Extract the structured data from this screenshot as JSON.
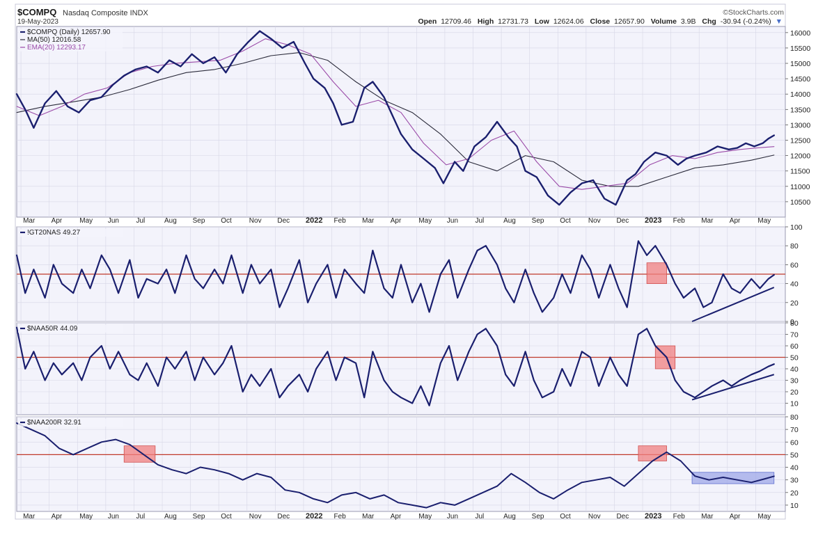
{
  "header": {
    "symbol": "$COMPQ",
    "name": "Nasdaq Composite INDX",
    "date": "19-May-2023",
    "credit": "©StockCharts.com",
    "quote": {
      "open_label": "Open",
      "open": "12709.46",
      "high_label": "High",
      "high": "12731.73",
      "low_label": "Low",
      "low": "12624.06",
      "close_label": "Close",
      "close": "12657.90",
      "volume_label": "Volume",
      "volume": "3.9B",
      "chg_label": "Chg",
      "chg": "-30.94 (-0.24%)"
    }
  },
  "colors": {
    "price": "#1a1f6e",
    "ma50": "#2a2a3a",
    "ema20": "#9a4aa8",
    "reference_line": "#c0392b",
    "highlight_red": "#f08080",
    "highlight_blue": "#9fa8e8",
    "panel_bg": "#f3f3fb",
    "grid": "#d6d6e6"
  },
  "x_axis": {
    "labels": [
      "Mar",
      "Apr",
      "May",
      "Jun",
      "Jul",
      "Aug",
      "Sep",
      "Oct",
      "Nov",
      "Dec",
      "2022",
      "Feb",
      "Mar",
      "Apr",
      "May",
      "Jun",
      "Jul",
      "Aug",
      "Sep",
      "Oct",
      "Nov",
      "Dec",
      "2023",
      "Feb",
      "Mar",
      "Apr",
      "May"
    ],
    "bold_labels": [
      "2022",
      "2023"
    ]
  },
  "chart_data": [
    {
      "type": "line",
      "panel": "price",
      "ylim": [
        10000,
        16200
      ],
      "yticks": [
        10500,
        11000,
        11500,
        12000,
        12500,
        13000,
        13500,
        14000,
        14500,
        15000,
        15500,
        16000
      ],
      "legend": [
        {
          "key": "price",
          "label": "$COMPQ (Daily) 12657.90"
        },
        {
          "key": "ma50",
          "label": "MA(50) 12016.58"
        },
        {
          "key": "ema20",
          "label": "EMA(20) 12293.17"
        }
      ],
      "legend_placement": "top-left",
      "series": [
        {
          "name": "$COMPQ (Daily)",
          "key": "price",
          "x": [
            0,
            0.3,
            0.6,
            1.0,
            1.4,
            1.8,
            2.2,
            2.6,
            3.0,
            3.4,
            3.8,
            4.2,
            4.6,
            5.0,
            5.4,
            5.8,
            6.2,
            6.6,
            7.0,
            7.4,
            7.8,
            8.2,
            8.6,
            9.0,
            9.4,
            9.8,
            10.2,
            10.5,
            10.9,
            11.2,
            11.5,
            11.9,
            12.3,
            12.6,
            13.0,
            13.3,
            13.6,
            14.0,
            14.4,
            14.8,
            15.1,
            15.5,
            15.8,
            16.2,
            16.6,
            17.0,
            17.4,
            17.7,
            18.0,
            18.4,
            18.8,
            19.2,
            19.6,
            20.0,
            20.4,
            20.8,
            21.2,
            21.6,
            21.9,
            22.2,
            22.6,
            23.0,
            23.4,
            23.7,
            24.0,
            24.4,
            24.8,
            25.2,
            25.5,
            25.8,
            26.1,
            26.4,
            26.6,
            26.8
          ],
          "y": [
            14000,
            13500,
            12900,
            13700,
            14100,
            13600,
            13400,
            13800,
            13900,
            14300,
            14600,
            14800,
            14900,
            14700,
            15100,
            14900,
            15300,
            15000,
            15200,
            14700,
            15300,
            15700,
            16050,
            15800,
            15500,
            15700,
            15000,
            14500,
            14200,
            13700,
            13000,
            13100,
            14200,
            14400,
            13900,
            13300,
            12700,
            12200,
            11900,
            11600,
            11100,
            11800,
            11500,
            12300,
            12600,
            13100,
            12600,
            12300,
            11500,
            11300,
            10700,
            10400,
            10800,
            11100,
            11200,
            10600,
            10400,
            11200,
            11400,
            11800,
            12100,
            12000,
            11700,
            11900,
            12000,
            12100,
            12300,
            12200,
            12250,
            12400,
            12300,
            12400,
            12550,
            12657.9
          ]
        },
        {
          "name": "MA(50)",
          "key": "ma50",
          "x": [
            0,
            1,
            2,
            3,
            4,
            5,
            6,
            7,
            8,
            9,
            10,
            11,
            12,
            13,
            14,
            15,
            16,
            17,
            18,
            19,
            20,
            21,
            22,
            23,
            24,
            25,
            26,
            26.8
          ],
          "y": [
            13400,
            13600,
            13750,
            13900,
            14150,
            14450,
            14700,
            14800,
            15000,
            15250,
            15350,
            15100,
            14400,
            13800,
            13400,
            12700,
            11800,
            11500,
            12000,
            11800,
            11200,
            11000,
            11000,
            11300,
            11600,
            11700,
            11850,
            12016.58
          ]
        },
        {
          "name": "EMA(20)",
          "key": "ema20",
          "x": [
            0,
            0.8,
            1.6,
            2.4,
            3.2,
            4.0,
            4.8,
            5.6,
            6.4,
            7.2,
            8.0,
            8.8,
            9.6,
            10.4,
            11.2,
            12.0,
            12.8,
            13.6,
            14.4,
            15.2,
            16.0,
            16.8,
            17.6,
            18.4,
            19.2,
            20.0,
            20.8,
            21.6,
            22.4,
            23.2,
            24.0,
            24.8,
            25.6,
            26.2,
            26.8
          ],
          "y": [
            13600,
            13300,
            13600,
            14000,
            14200,
            14700,
            14900,
            15000,
            15050,
            15100,
            15400,
            15800,
            15600,
            15300,
            14400,
            13600,
            13800,
            13400,
            12400,
            11700,
            11900,
            12500,
            12800,
            11800,
            11000,
            10900,
            11000,
            11100,
            11700,
            12000,
            11900,
            12100,
            12200,
            12250,
            12293.17
          ]
        }
      ]
    },
    {
      "type": "line",
      "panel": "gt20",
      "ylim": [
        0,
        100
      ],
      "yticks": [
        0,
        20,
        40,
        60,
        80,
        100
      ],
      "reference_value": 50,
      "legend": [
        {
          "key": "price",
          "label": "!GT20NAS 49.27"
        }
      ],
      "highlights": [
        {
          "type": "box",
          "x0": 22.3,
          "x1": 23.0,
          "y0": 40,
          "y1": 62,
          "color_key": "highlight_red"
        }
      ],
      "trendlines": [
        {
          "x": [
            23.9,
            26.8
          ],
          "y": [
            0,
            36
          ]
        }
      ],
      "series": [
        {
          "name": "!GT20NAS",
          "key": "price",
          "x": [
            0,
            0.3,
            0.6,
            1.0,
            1.3,
            1.6,
            2.0,
            2.3,
            2.6,
            3.0,
            3.3,
            3.6,
            4.0,
            4.3,
            4.6,
            5.0,
            5.3,
            5.6,
            6.0,
            6.3,
            6.6,
            7.0,
            7.3,
            7.6,
            8.0,
            8.3,
            8.6,
            9.0,
            9.3,
            9.6,
            10.0,
            10.3,
            10.6,
            11.0,
            11.3,
            11.6,
            12.0,
            12.3,
            12.6,
            13.0,
            13.3,
            13.6,
            14.0,
            14.3,
            14.6,
            15.0,
            15.3,
            15.6,
            16.0,
            16.3,
            16.6,
            17.0,
            17.3,
            17.6,
            18.0,
            18.3,
            18.6,
            19.0,
            19.3,
            19.6,
            20.0,
            20.3,
            20.6,
            21.0,
            21.3,
            21.6,
            22.0,
            22.3,
            22.6,
            23.0,
            23.3,
            23.6,
            24.0,
            24.3,
            24.6,
            25.0,
            25.3,
            25.6,
            26.0,
            26.3,
            26.6,
            26.8
          ],
          "y": [
            70,
            30,
            55,
            25,
            60,
            40,
            30,
            55,
            35,
            70,
            55,
            30,
            65,
            25,
            45,
            40,
            55,
            30,
            70,
            45,
            35,
            55,
            40,
            70,
            30,
            60,
            40,
            55,
            15,
            35,
            65,
            20,
            40,
            60,
            25,
            55,
            40,
            30,
            75,
            35,
            25,
            60,
            20,
            40,
            10,
            50,
            65,
            25,
            55,
            75,
            80,
            60,
            35,
            20,
            55,
            30,
            10,
            25,
            50,
            30,
            70,
            55,
            25,
            60,
            35,
            15,
            85,
            70,
            80,
            60,
            40,
            25,
            35,
            15,
            20,
            50,
            35,
            30,
            45,
            35,
            45,
            49.27
          ]
        }
      ]
    },
    {
      "type": "line",
      "panel": "naa50r",
      "ylim": [
        0,
        80
      ],
      "yticks": [
        10,
        20,
        30,
        40,
        50,
        60,
        70,
        80
      ],
      "reference_value": 50,
      "legend": [
        {
          "key": "price",
          "label": "$NAA50R 44.09"
        }
      ],
      "highlights": [
        {
          "type": "box",
          "x0": 22.6,
          "x1": 23.3,
          "y0": 40,
          "y1": 60,
          "color_key": "highlight_red"
        }
      ],
      "trendlines": [
        {
          "x": [
            23.9,
            26.8
          ],
          "y": [
            13,
            35
          ]
        }
      ],
      "series": [
        {
          "name": "$NAA50R",
          "key": "price",
          "x": [
            0,
            0.3,
            0.6,
            1.0,
            1.3,
            1.6,
            2.0,
            2.3,
            2.6,
            3.0,
            3.3,
            3.6,
            4.0,
            4.3,
            4.6,
            5.0,
            5.3,
            5.6,
            6.0,
            6.3,
            6.6,
            7.0,
            7.3,
            7.6,
            8.0,
            8.3,
            8.6,
            9.0,
            9.3,
            9.6,
            10.0,
            10.3,
            10.6,
            11.0,
            11.3,
            11.6,
            12.0,
            12.3,
            12.6,
            13.0,
            13.3,
            13.6,
            14.0,
            14.3,
            14.6,
            15.0,
            15.3,
            15.6,
            16.0,
            16.3,
            16.6,
            17.0,
            17.3,
            17.6,
            18.0,
            18.3,
            18.6,
            19.0,
            19.3,
            19.6,
            20.0,
            20.3,
            20.6,
            21.0,
            21.3,
            21.6,
            22.0,
            22.3,
            22.6,
            23.0,
            23.3,
            23.6,
            24.0,
            24.3,
            24.6,
            25.0,
            25.3,
            25.6,
            26.0,
            26.3,
            26.6,
            26.8
          ],
          "y": [
            76,
            40,
            55,
            30,
            45,
            35,
            45,
            30,
            50,
            60,
            40,
            55,
            35,
            30,
            45,
            25,
            50,
            40,
            55,
            30,
            50,
            35,
            45,
            60,
            20,
            35,
            25,
            40,
            15,
            25,
            35,
            20,
            40,
            55,
            30,
            50,
            45,
            15,
            55,
            30,
            20,
            15,
            10,
            25,
            8,
            45,
            60,
            30,
            55,
            70,
            75,
            60,
            35,
            25,
            55,
            30,
            15,
            20,
            40,
            25,
            55,
            50,
            25,
            50,
            35,
            25,
            70,
            75,
            60,
            50,
            30,
            20,
            15,
            20,
            25,
            30,
            25,
            30,
            35,
            38,
            42,
            44.09
          ]
        }
      ]
    },
    {
      "type": "line",
      "panel": "naa200r",
      "ylim": [
        5,
        80
      ],
      "yticks": [
        10,
        20,
        30,
        40,
        50,
        60,
        70,
        80
      ],
      "reference_value": 50,
      "legend": [
        {
          "key": "price",
          "label": "$NAA200R 32.91"
        }
      ],
      "highlights": [
        {
          "type": "box",
          "x0": 3.8,
          "x1": 4.9,
          "y0": 44,
          "y1": 57,
          "color_key": "highlight_red"
        },
        {
          "type": "box",
          "x0": 22.0,
          "x1": 23.0,
          "y0": 45,
          "y1": 57,
          "color_key": "highlight_red"
        },
        {
          "type": "box",
          "x0": 23.9,
          "x1": 26.8,
          "y0": 27,
          "y1": 36,
          "color_key": "highlight_blue"
        }
      ],
      "series": [
        {
          "name": "$NAA200R",
          "key": "price",
          "x": [
            0,
            0.5,
            1.0,
            1.5,
            2.0,
            2.5,
            3.0,
            3.5,
            4.0,
            4.5,
            5.0,
            5.5,
            6.0,
            6.5,
            7.0,
            7.5,
            8.0,
            8.5,
            9.0,
            9.5,
            10.0,
            10.5,
            11.0,
            11.5,
            12.0,
            12.5,
            13.0,
            13.5,
            14.0,
            14.5,
            15.0,
            15.5,
            16.0,
            16.5,
            17.0,
            17.5,
            18.0,
            18.5,
            19.0,
            19.5,
            20.0,
            20.5,
            21.0,
            21.5,
            22.0,
            22.5,
            23.0,
            23.5,
            24.0,
            24.5,
            25.0,
            25.5,
            26.0,
            26.5,
            26.8
          ],
          "y": [
            75,
            70,
            65,
            55,
            50,
            55,
            60,
            62,
            58,
            50,
            42,
            38,
            35,
            40,
            38,
            35,
            30,
            35,
            32,
            22,
            20,
            15,
            12,
            18,
            20,
            15,
            18,
            12,
            10,
            8,
            12,
            10,
            15,
            20,
            25,
            35,
            28,
            20,
            15,
            22,
            28,
            30,
            32,
            25,
            35,
            45,
            52,
            45,
            33,
            30,
            32,
            30,
            28,
            31,
            32.91
          ]
        }
      ]
    }
  ]
}
